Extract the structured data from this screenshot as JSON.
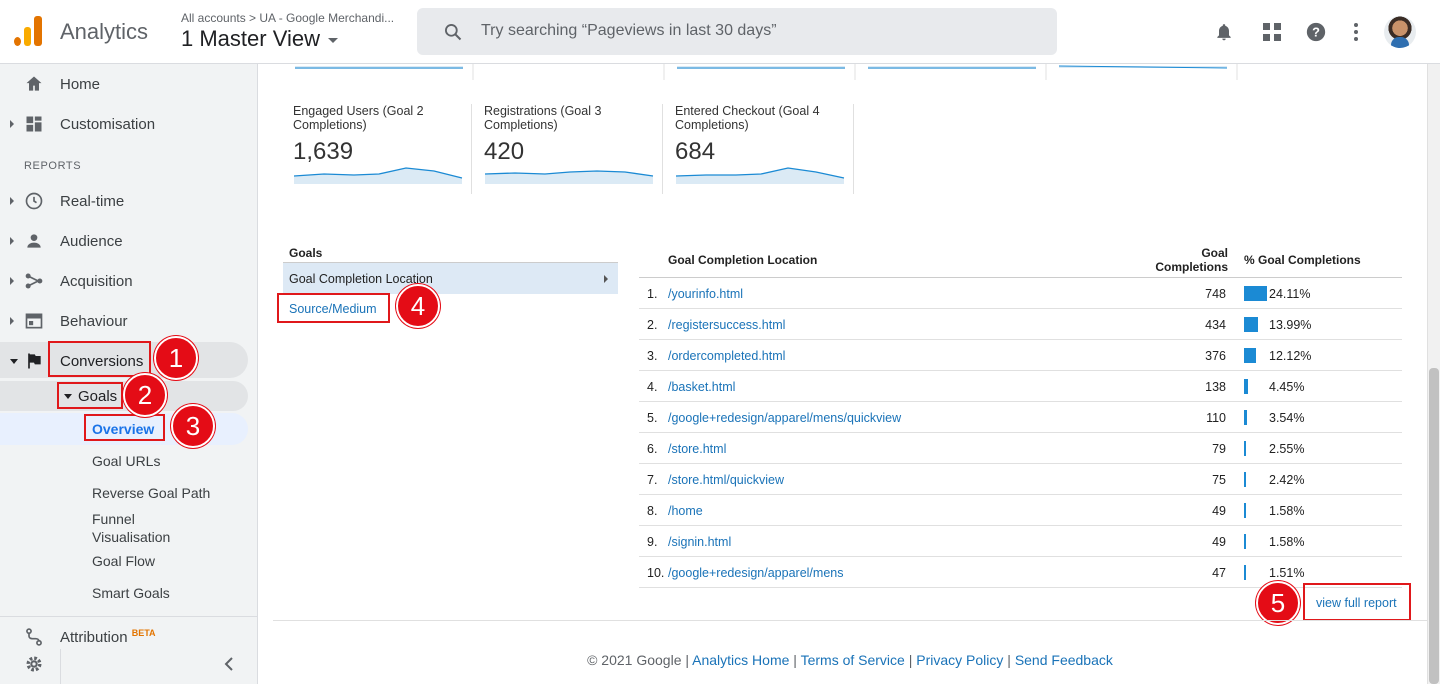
{
  "app": {
    "brand": "Analytics",
    "breadcrumb": "All accounts > UA - Google Merchandi...",
    "view": "1 Master View"
  },
  "search": {
    "placeholder": "Try searching “Pageviews in last 30 days”"
  },
  "topbar_icons": [
    "bell-icon",
    "apps-icon",
    "help-icon",
    "more-vert-icon"
  ],
  "sidebar": {
    "home": "Home",
    "customisation": "Customisation",
    "reports_header": "REPORTS",
    "realtime": "Real-time",
    "audience": "Audience",
    "acquisition": "Acquisition",
    "behaviour": "Behaviour",
    "conversions": "Conversions",
    "goals": "Goals",
    "goal_items": [
      "Overview",
      "Goal URLs",
      "Reverse Goal Path",
      "Funnel Visualisation",
      "Goal Flow",
      "Smart Goals"
    ],
    "attribution": "Attribution",
    "attribution_badge": "BETA"
  },
  "cards": [
    {
      "title": "Engaged Users (Goal 2 Completions)",
      "value": "1,639"
    },
    {
      "title": "Registrations (Goal 3 Completions)",
      "value": "420"
    },
    {
      "title": "Entered Checkout (Goal 4 Completions)",
      "value": "684"
    }
  ],
  "goals_panel": {
    "header": "Goals",
    "selected": "Goal Completion Location",
    "link": "Source/Medium"
  },
  "table": {
    "col_location": "Goal Completion Location",
    "col_completions": "Goal Completions",
    "col_percent": "% Goal Completions",
    "rows": [
      {
        "n": "1.",
        "loc": "/yourinfo.html",
        "count": "748",
        "pct": "24.11%",
        "share": 24.11
      },
      {
        "n": "2.",
        "loc": "/registersuccess.html",
        "count": "434",
        "pct": "13.99%",
        "share": 13.99
      },
      {
        "n": "3.",
        "loc": "/ordercompleted.html",
        "count": "376",
        "pct": "12.12%",
        "share": 12.12
      },
      {
        "n": "4.",
        "loc": "/basket.html",
        "count": "138",
        "pct": "4.45%",
        "share": 4.45
      },
      {
        "n": "5.",
        "loc": "/google+redesign/apparel/mens/quickview",
        "count": "110",
        "pct": "3.54%",
        "share": 3.54
      },
      {
        "n": "6.",
        "loc": "/store.html",
        "count": "79",
        "pct": "2.55%",
        "share": 2.55
      },
      {
        "n": "7.",
        "loc": "/store.html/quickview",
        "count": "75",
        "pct": "2.42%",
        "share": 2.42
      },
      {
        "n": "8.",
        "loc": "/home",
        "count": "49",
        "pct": "1.58%",
        "share": 1.58
      },
      {
        "n": "9.",
        "loc": "/signin.html",
        "count": "49",
        "pct": "1.58%",
        "share": 1.58
      },
      {
        "n": "10.",
        "loc": "/google+redesign/apparel/mens",
        "count": "47",
        "pct": "1.51%",
        "share": 1.51
      }
    ],
    "view_full": "view full report"
  },
  "callouts": [
    "1",
    "2",
    "3",
    "4",
    "5"
  ],
  "footer": {
    "copyright": "© 2021 Google |",
    "links": [
      "Analytics Home",
      "Terms of Service",
      "Privacy Policy",
      "Send Feedback"
    ],
    "separator": "|"
  },
  "colors": {
    "accent": "#1a73b8",
    "bar": "#1b8ad4",
    "callout": "#e40c16"
  }
}
